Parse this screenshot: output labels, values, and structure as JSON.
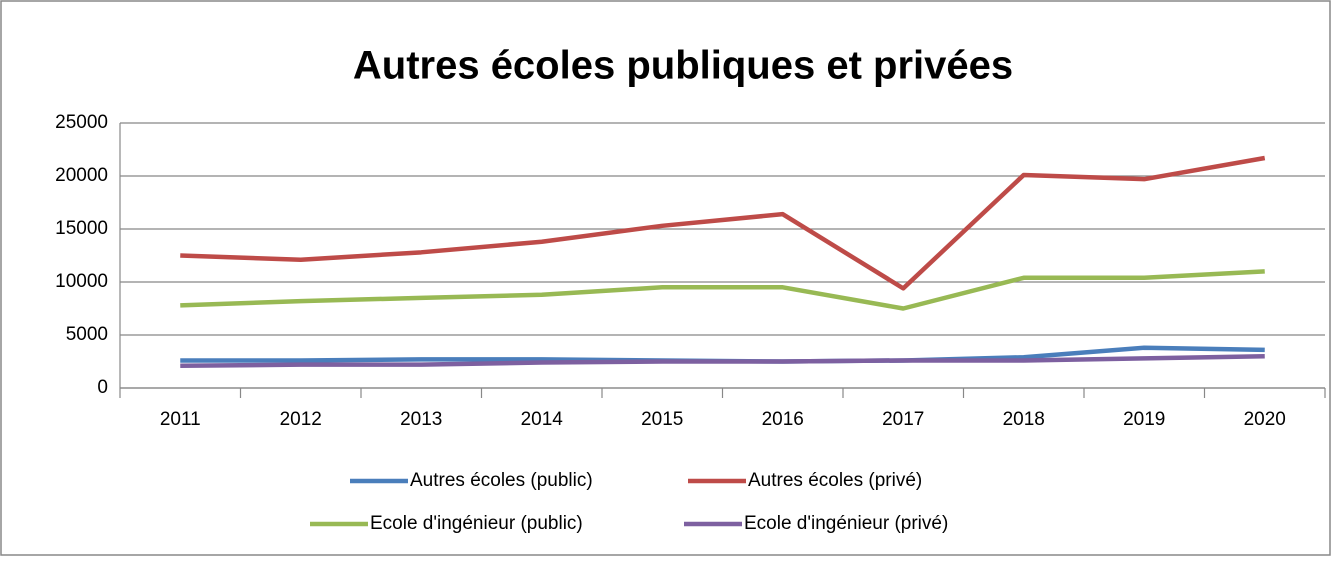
{
  "chart_data": {
    "type": "line",
    "title": "Autres écoles publiques et privées",
    "categories": [
      "2011",
      "2012",
      "2013",
      "2014",
      "2015",
      "2016",
      "2017",
      "2018",
      "2019",
      "2020"
    ],
    "series": [
      {
        "name": "Autres écoles (public)",
        "color": "#4a7ebb",
        "values": [
          2600,
          2600,
          2700,
          2700,
          2600,
          2500,
          2600,
          2900,
          3800,
          3600
        ]
      },
      {
        "name": "Autres écoles (privé)",
        "color": "#be4b48",
        "values": [
          12500,
          12100,
          12800,
          13800,
          15300,
          16400,
          9400,
          20100,
          19700,
          21700
        ]
      },
      {
        "name": "Ecole d'ingénieur (public)",
        "color": "#98b954",
        "values": [
          7800,
          8200,
          8500,
          8800,
          9500,
          9500,
          7500,
          10400,
          10400,
          11000
        ]
      },
      {
        "name": "Ecole d'ingénieur (privé)",
        "color": "#7d60a0",
        "values": [
          2100,
          2200,
          2200,
          2400,
          2500,
          2500,
          2600,
          2600,
          2800,
          3000
        ]
      }
    ],
    "ylim": [
      0,
      25000
    ],
    "yticks": [
      0,
      5000,
      10000,
      15000,
      20000,
      25000
    ],
    "grid": true
  }
}
